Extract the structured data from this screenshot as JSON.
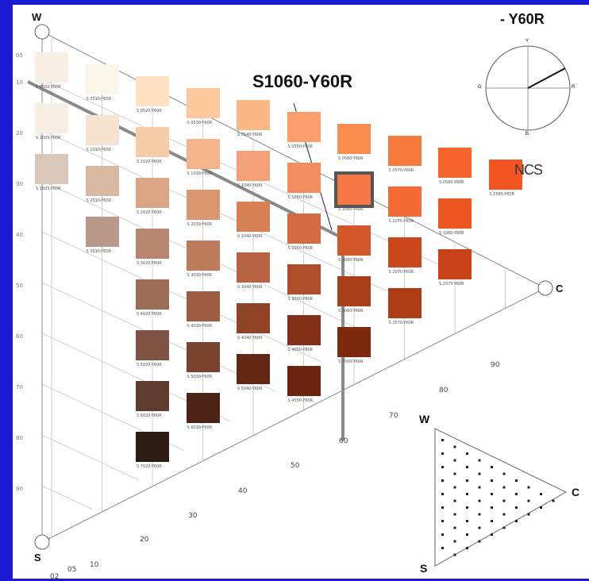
{
  "header": {
    "hue_title": "- Y60R",
    "selected_label": "S1060-Y60R",
    "ncs_logo": "NCS"
  },
  "triangle": {
    "w": "W",
    "s": "S",
    "c": "C"
  },
  "circle": {
    "y": "Y",
    "r": "R",
    "b": "B",
    "g": "G"
  },
  "bottom_ticks": [
    "02",
    "05",
    "10",
    "20",
    "30",
    "40",
    "50",
    "60",
    "70",
    "80",
    "90"
  ],
  "left_ticks": [
    "05",
    "10",
    "20",
    "30",
    "40",
    "50",
    "60",
    "70",
    "80",
    "90"
  ],
  "swatches": [
    {
      "col": 0,
      "row": 0,
      "code": "S 0502-Y60R",
      "color": "#f8efe4"
    },
    {
      "col": 0,
      "row": 1,
      "code": "S 1005-Y60R",
      "color": "#f7efe6"
    },
    {
      "col": 0,
      "row": 2,
      "code": "S 1505-Y60R",
      "color": "#d9c8b8"
    },
    {
      "col": 1,
      "row": 0,
      "code": "S 0510-Y60R",
      "color": "#fbf6ea"
    },
    {
      "col": 1,
      "row": 1,
      "code": "S 1010-Y60R",
      "color": "#f5e2cf"
    },
    {
      "col": 1,
      "row": 2,
      "code": "S 2010-Y60R",
      "color": "#d8b8a0"
    },
    {
      "col": 1,
      "row": 3,
      "code": "S 3010-Y60R",
      "color": "#b89888"
    },
    {
      "col": 2,
      "row": 0,
      "code": "S 0520-Y60R",
      "color": "#fde1c3"
    },
    {
      "col": 2,
      "row": 1,
      "code": "S 1020-Y60R",
      "color": "#f7cca9"
    },
    {
      "col": 2,
      "row": 2,
      "code": "S 2020-Y60R",
      "color": "#d9a585"
    },
    {
      "col": 2,
      "row": 3,
      "code": "S 3020-Y60R",
      "color": "#b68670"
    },
    {
      "col": 2,
      "row": 4,
      "code": "S 4020-Y60R",
      "color": "#9b6c58"
    },
    {
      "col": 2,
      "row": 5,
      "code": "S 5020-Y60R",
      "color": "#7d5444"
    },
    {
      "col": 2,
      "row": 6,
      "code": "S 6020-Y60R",
      "color": "#5e3c2f"
    },
    {
      "col": 2,
      "row": 7,
      "code": "S 7020-Y60R",
      "color": "#2d1c14"
    },
    {
      "col": 3,
      "row": 0,
      "code": "S 0530-Y60R",
      "color": "#fcc89c"
    },
    {
      "col": 3,
      "row": 1,
      "code": "S 1030-Y60R",
      "color": "#f6b48a"
    },
    {
      "col": 3,
      "row": 2,
      "code": "S 2030-Y60R",
      "color": "#db9770"
    },
    {
      "col": 3,
      "row": 3,
      "code": "S 3030-Y60R",
      "color": "#bd7b5b"
    },
    {
      "col": 3,
      "row": 4,
      "code": "S 4030-Y60R",
      "color": "#9c5d42"
    },
    {
      "col": 3,
      "row": 5,
      "code": "S 5030-Y60R",
      "color": "#7a4330"
    },
    {
      "col": 3,
      "row": 6,
      "code": "S 6030-Y60R",
      "color": "#4b2416"
    },
    {
      "col": 4,
      "row": 0,
      "code": "S 0540-Y60R",
      "color": "#fbb887"
    },
    {
      "col": 4,
      "row": 1,
      "code": "S 1040-Y60R",
      "color": "#f4a07a"
    },
    {
      "col": 4,
      "row": 2,
      "code": "S 2040-Y60R",
      "color": "#d88055"
    },
    {
      "col": 4,
      "row": 3,
      "code": "S 3040-Y60R",
      "color": "#b86344"
    },
    {
      "col": 4,
      "row": 4,
      "code": "S 4040-Y60R",
      "color": "#8f4427"
    },
    {
      "col": 4,
      "row": 5,
      "code": "S 5040-Y60R",
      "color": "#622714"
    },
    {
      "col": 5,
      "row": 0,
      "code": "S 0550-Y60R",
      "color": "#fa9f6c"
    },
    {
      "col": 5,
      "row": 1,
      "code": "S 1050-Y60R",
      "color": "#f28d5e"
    },
    {
      "col": 5,
      "row": 2,
      "code": "S 2050-Y60R",
      "color": "#d46a42"
    },
    {
      "col": 5,
      "row": 3,
      "code": "S 3050-Y60R",
      "color": "#ad4e2c"
    },
    {
      "col": 5,
      "row": 4,
      "code": "S 4050-Y60R",
      "color": "#842f17"
    },
    {
      "col": 5,
      "row": 5,
      "code": "S 4550-Y60R",
      "color": "#6a2410"
    },
    {
      "col": 6,
      "row": 0,
      "code": "S 0560-Y60R",
      "color": "#fa8c4f"
    },
    {
      "col": 6,
      "row": 1,
      "code": "S 1060-Y60R",
      "color": "#f67747"
    },
    {
      "col": 6,
      "row": 2,
      "code": "S 2060-Y60R",
      "color": "#cf5729"
    },
    {
      "col": 6,
      "row": 3,
      "code": "S 3060-Y60R",
      "color": "#a83f18"
    },
    {
      "col": 6,
      "row": 4,
      "code": "S 3560-Y60R",
      "color": "#7e2a0f"
    },
    {
      "col": 7,
      "row": 0,
      "code": "S 0570-Y60R",
      "color": "#f97b3b"
    },
    {
      "col": 7,
      "row": 1,
      "code": "S 1070-Y60R",
      "color": "#f56b35"
    },
    {
      "col": 7,
      "row": 2,
      "code": "S 2070-Y60R",
      "color": "#c9471b"
    },
    {
      "col": 7,
      "row": 3,
      "code": "S 2570-Y60R",
      "color": "#ad3b14"
    },
    {
      "col": 8,
      "row": 0,
      "code": "S 0580-Y60R",
      "color": "#f5652b"
    },
    {
      "col": 8,
      "row": 1,
      "code": "S 1080-Y60R",
      "color": "#ec5620"
    },
    {
      "col": 8,
      "row": 2,
      "code": "S 2075-Y60R",
      "color": "#c84016"
    },
    {
      "col": 9,
      "row": 0,
      "code": "S 0585-Y60R",
      "color": "#f45520"
    }
  ],
  "selected": {
    "col": 6,
    "row": 1
  }
}
